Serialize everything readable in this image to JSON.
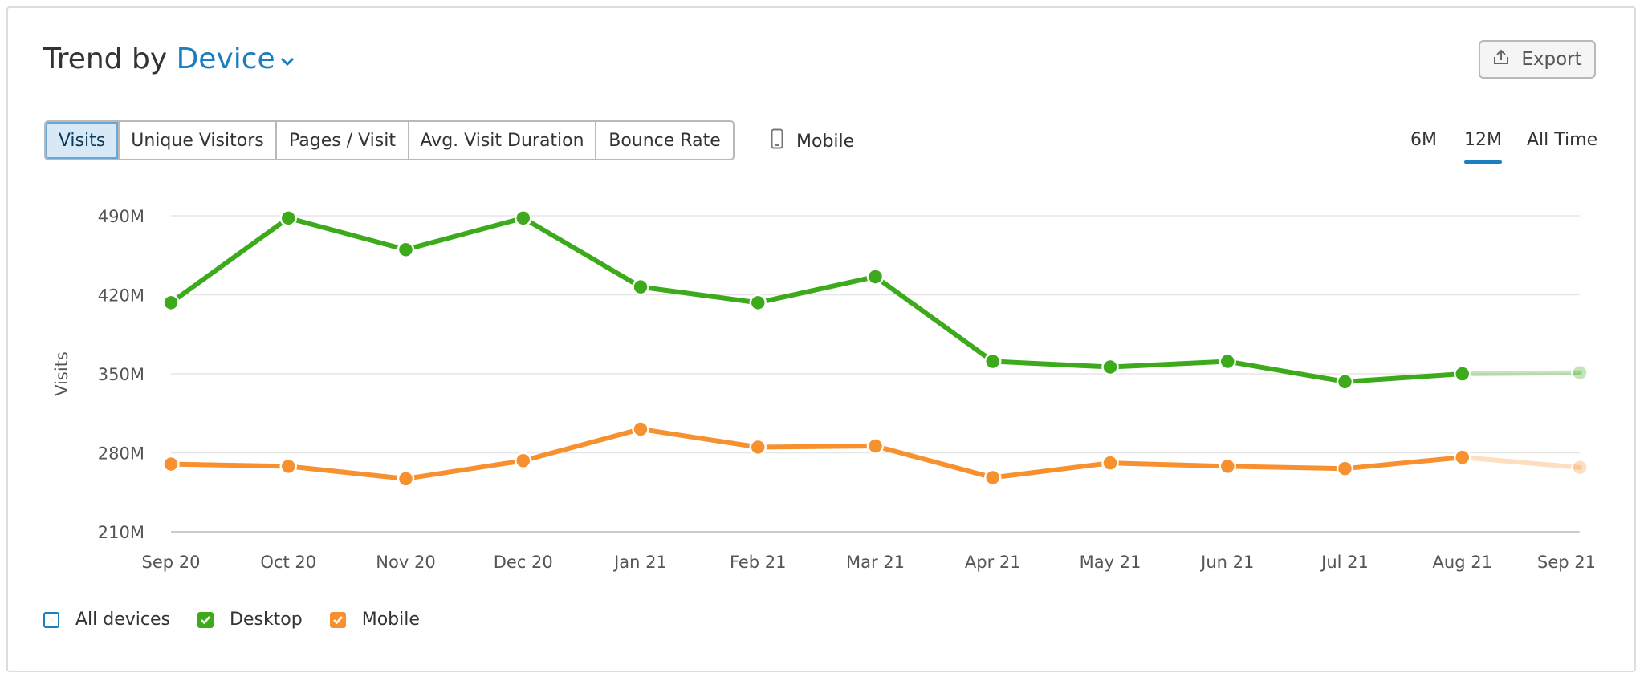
{
  "header": {
    "title_prefix": "Trend by",
    "title_dropdown": "Device",
    "export_label": "Export"
  },
  "tabs": [
    {
      "label": "Visits",
      "active": true
    },
    {
      "label": "Unique Visitors",
      "active": false
    },
    {
      "label": "Pages / Visit",
      "active": false
    },
    {
      "label": "Avg. Visit Duration",
      "active": false
    },
    {
      "label": "Bounce Rate",
      "active": false
    }
  ],
  "device_filter": {
    "label": "Mobile",
    "icon": "phone-icon"
  },
  "periods": [
    {
      "label": "6M",
      "active": false
    },
    {
      "label": "12M",
      "active": true
    },
    {
      "label": "All Time",
      "active": false
    }
  ],
  "legend": [
    {
      "label": "All devices",
      "checked": false,
      "color": "#1a7fc1"
    },
    {
      "label": "Desktop",
      "checked": true,
      "color": "#3daa1c"
    },
    {
      "label": "Mobile",
      "checked": true,
      "color": "#f7912f"
    }
  ],
  "chart_data": {
    "type": "line",
    "ylabel": "Visits",
    "xlabel": "",
    "ylim": [
      210,
      490
    ],
    "y_ticks": [
      "210M",
      "280M",
      "350M",
      "420M",
      "490M"
    ],
    "y_tick_values": [
      210,
      280,
      350,
      420,
      490
    ],
    "categories": [
      "Sep 20",
      "Oct 20",
      "Nov 20",
      "Dec 20",
      "Jan 21",
      "Feb 21",
      "Mar 21",
      "Apr 21",
      "May 21",
      "Jun 21",
      "Jul 21",
      "Aug 21",
      "Sep 21"
    ],
    "grid": true,
    "incomplete_last_point": true,
    "series": [
      {
        "name": "Desktop",
        "color": "#3daa1c",
        "values": [
          413,
          488,
          460,
          488,
          427,
          413,
          436,
          361,
          356,
          361,
          343,
          350,
          351
        ]
      },
      {
        "name": "Mobile",
        "color": "#f7912f",
        "values": [
          270,
          268,
          257,
          273,
          301,
          285,
          286,
          258,
          271,
          268,
          266,
          276,
          267
        ]
      }
    ]
  }
}
